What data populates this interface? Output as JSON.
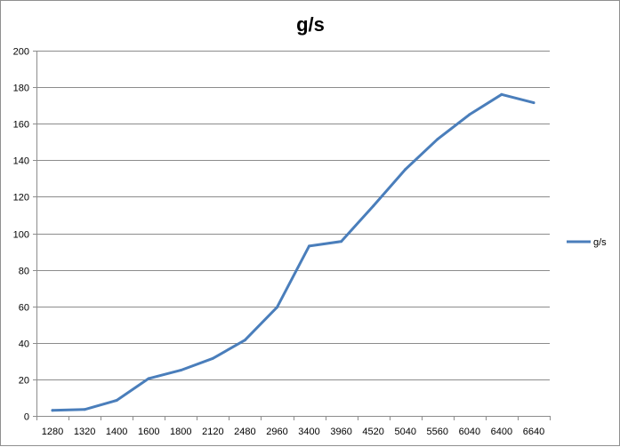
{
  "chart_data": {
    "type": "line",
    "title": "g/s",
    "xlabel": "",
    "ylabel": "",
    "categories": [
      "1280",
      "1320",
      "1400",
      "1600",
      "1800",
      "2120",
      "2480",
      "2960",
      "3400",
      "3960",
      "4520",
      "5040",
      "5560",
      "6040",
      "6400",
      "6640"
    ],
    "series": [
      {
        "name": "g/s",
        "color": "#4a7ebb",
        "values": [
          3,
          3.5,
          8.5,
          20.5,
          25,
          31.5,
          41.5,
          59.5,
          93,
          95.5,
          115,
          135,
          151.5,
          165,
          176,
          171.5
        ]
      }
    ],
    "ylim": [
      0,
      200
    ],
    "yticks": [
      0,
      20,
      40,
      60,
      80,
      100,
      120,
      140,
      160,
      180,
      200
    ],
    "grid": true,
    "legend_position": "right"
  }
}
